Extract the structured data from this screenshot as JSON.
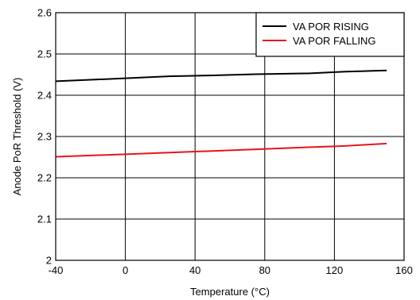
{
  "chart_data": {
    "type": "line",
    "xlabel": "Temperature (°C)",
    "ylabel": "Anode PoR Threshold (V)",
    "xlim": [
      -40,
      160
    ],
    "ylim": [
      2.0,
      2.6
    ],
    "xticks": [
      -40,
      0,
      40,
      80,
      120,
      160
    ],
    "yticks": [
      2.0,
      2.1,
      2.2,
      2.3,
      2.4,
      2.5,
      2.6
    ],
    "xtick_labels": [
      "-40",
      "0",
      "40",
      "80",
      "120",
      "160"
    ],
    "ytick_labels": [
      "2",
      "2.1",
      "2.2",
      "2.3",
      "2.4",
      "2.5",
      "2.6"
    ],
    "grid": true,
    "legend_position": "top-right",
    "series": [
      {
        "name": "VA POR RISING",
        "color": "#000000",
        "x": [
          -40,
          0,
          25,
          50,
          75,
          105,
          125,
          150
        ],
        "y": [
          2.434,
          2.441,
          2.446,
          2.448,
          2.451,
          2.453,
          2.457,
          2.46
        ]
      },
      {
        "name": "VA POR FALLING",
        "color": "#e8141a",
        "x": [
          -40,
          0,
          25,
          50,
          75,
          105,
          125,
          150
        ],
        "y": [
          2.251,
          2.257,
          2.261,
          2.265,
          2.269,
          2.274,
          2.277,
          2.283
        ]
      }
    ]
  }
}
